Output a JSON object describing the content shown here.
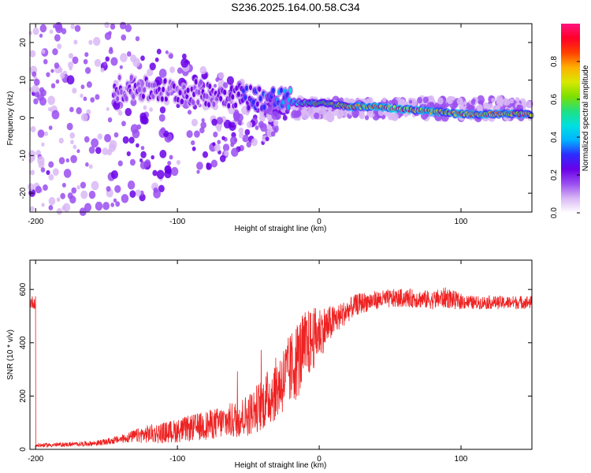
{
  "title": "S236.2025.164.00.58.C34",
  "colors": {
    "background": "#ffffff",
    "axes": "#000000",
    "snr_line": "#ee2222",
    "colormap": [
      "#ffffff",
      "#d9b8f5",
      "#9a4ef0",
      "#6a00e8",
      "#2c2cff",
      "#00b4ff",
      "#00e0e0",
      "#20e080",
      "#7ee000",
      "#d8e800",
      "#ffb000",
      "#ff4000",
      "#ff0028",
      "#ff1480"
    ]
  },
  "chart_data": [
    {
      "type": "heatmap",
      "name": "spectrogram",
      "xlabel": "Height of straight line (km)",
      "ylabel": "Frequency (Hz)",
      "xlim": [
        -204,
        150
      ],
      "ylim": [
        -25,
        25
      ],
      "x_ticks": [
        -200,
        -100,
        0,
        100
      ],
      "x_tick_labels": [
        "-200",
        "-100",
        "0",
        "100"
      ],
      "y_ticks": [
        -20,
        -10,
        0,
        10,
        20
      ],
      "y_tick_labels": [
        "-20",
        "-10",
        "0",
        "10",
        "20"
      ],
      "colorbar": {
        "label": "Normalized spectral amplitude",
        "range": [
          0,
          1
        ],
        "ticks": [
          0.0,
          0.2,
          0.4,
          0.6,
          0.8
        ],
        "tick_labels": [
          "0.0",
          "0.2",
          "0.4",
          "0.6",
          "0.8"
        ]
      },
      "signal_track": {
        "description_points": [
          {
            "x": -145,
            "f": 8,
            "amp": 0.2
          },
          {
            "x": -100,
            "f": 7,
            "amp": 0.2
          },
          {
            "x": -60,
            "f": 6,
            "amp": 0.25
          },
          {
            "x": -30,
            "f": 5,
            "amp": 0.35
          },
          {
            "x": -15,
            "f": 4,
            "amp": 0.5
          },
          {
            "x": 0,
            "f": 4,
            "amp": 0.6
          },
          {
            "x": 20,
            "f": 3,
            "amp": 0.75
          },
          {
            "x": 40,
            "f": 3,
            "amp": 0.9
          },
          {
            "x": 70,
            "f": 2,
            "amp": 0.9
          },
          {
            "x": 100,
            "f": 1,
            "amp": 0.85
          },
          {
            "x": 130,
            "f": 1,
            "amp": 0.8
          },
          {
            "x": 150,
            "f": 1,
            "amp": 0.75
          }
        ]
      }
    },
    {
      "type": "line",
      "name": "snr",
      "xlabel": "Height of straight line (km)",
      "ylabel": "SNR (10 * v/v)",
      "xlim": [
        -204,
        150
      ],
      "ylim": [
        0,
        710
      ],
      "x_ticks": [
        -200,
        -100,
        0,
        100
      ],
      "x_tick_labels": [
        "-200",
        "-100",
        "0",
        "100"
      ],
      "y_ticks": [
        0,
        200,
        400,
        600
      ],
      "y_tick_labels": [
        "0",
        "200",
        "400",
        "600"
      ],
      "series": [
        {
          "x": [
            -200,
            -190,
            -180,
            -170,
            -160,
            -150,
            -140,
            -130,
            -120,
            -110,
            -100,
            -90,
            -80,
            -70,
            -60,
            -50,
            -40,
            -30,
            -20,
            -15,
            -10,
            -5,
            0,
            5,
            10,
            15,
            20,
            25,
            30,
            40,
            50,
            60,
            70,
            80,
            90,
            95,
            100,
            110,
            120,
            130,
            140,
            150
          ],
          "y": [
            15,
            16,
            18,
            20,
            22,
            28,
            38,
            50,
            58,
            62,
            70,
            80,
            90,
            100,
            110,
            130,
            170,
            230,
            300,
            340,
            380,
            410,
            440,
            460,
            480,
            500,
            520,
            540,
            550,
            560,
            565,
            568,
            565,
            560,
            570,
            560,
            555,
            550,
            552,
            550,
            552,
            552
          ],
          "noise": [
            8,
            8,
            8,
            8,
            10,
            12,
            15,
            25,
            35,
            40,
            45,
            50,
            55,
            60,
            70,
            80,
            100,
            120,
            140,
            150,
            140,
            120,
            100,
            80,
            60,
            50,
            45,
            40,
            40,
            35,
            35,
            35,
            35,
            35,
            40,
            35,
            30,
            25,
            25,
            25,
            25,
            25
          ]
        }
      ]
    }
  ]
}
